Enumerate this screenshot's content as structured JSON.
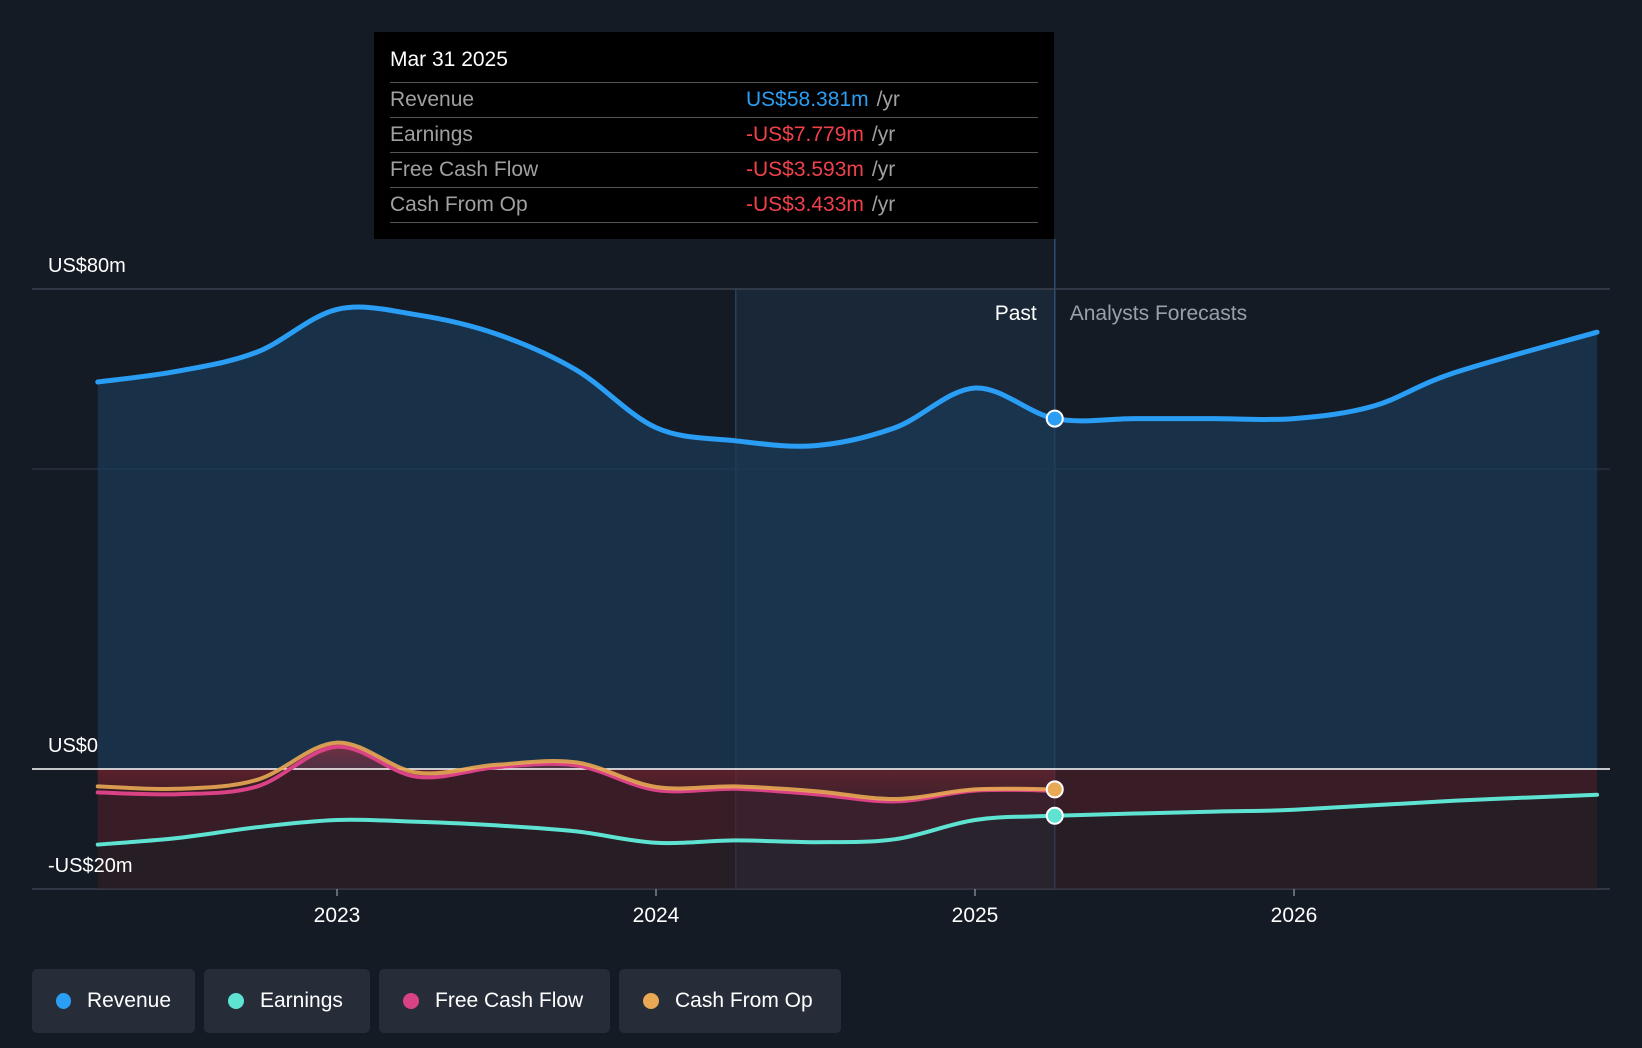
{
  "tooltip": {
    "date": "Mar 31 2025",
    "rows": [
      {
        "label": "Revenue",
        "value": "US$58.381m",
        "unit": "/yr",
        "color": "#2a9df4"
      },
      {
        "label": "Earnings",
        "value": "-US$7.779m",
        "unit": "/yr",
        "color": "#f0414b"
      },
      {
        "label": "Free Cash Flow",
        "value": "-US$3.593m",
        "unit": "/yr",
        "color": "#f0414b"
      },
      {
        "label": "Cash From Op",
        "value": "-US$3.433m",
        "unit": "/yr",
        "color": "#f0414b"
      }
    ]
  },
  "legend": [
    {
      "label": "Revenue",
      "color": "#2a9df4"
    },
    {
      "label": "Earnings",
      "color": "#5ee3d3"
    },
    {
      "label": "Free Cash Flow",
      "color": "#d94386"
    },
    {
      "label": "Cash From Op",
      "color": "#e8a854"
    }
  ],
  "chart_data": {
    "type": "area",
    "x_axis": {
      "range": [
        2022.2,
        2026.95
      ],
      "ticks": [
        2023,
        2024,
        2025,
        2026
      ],
      "tick_labels": [
        "2023",
        "2024",
        "2025",
        "2026"
      ]
    },
    "y_axis": {
      "range": [
        -20,
        80
      ],
      "tick_labels": [
        {
          "value": 80,
          "label": "US$80m"
        },
        {
          "value": 0,
          "label": "US$0"
        },
        {
          "value": -20,
          "label": "-US$20m"
        }
      ]
    },
    "past_label": "Past",
    "forecast_label": "Analysts Forecasts",
    "past_end": 2025.25,
    "highlight_start": 2024.25,
    "series": [
      {
        "name": "Revenue",
        "color": "#2a9df4",
        "points": [
          [
            2022.25,
            64.5
          ],
          [
            2022.5,
            66.3
          ],
          [
            2022.75,
            69.5
          ],
          [
            2023.0,
            76.6
          ],
          [
            2023.25,
            75.7
          ],
          [
            2023.5,
            72.5
          ],
          [
            2023.75,
            66.5
          ],
          [
            2024.0,
            56.9
          ],
          [
            2024.25,
            54.7
          ],
          [
            2024.5,
            53.9
          ],
          [
            2024.75,
            56.9
          ],
          [
            2025.0,
            63.5
          ],
          [
            2025.25,
            58.4
          ],
          [
            2025.5,
            58.4
          ],
          [
            2025.75,
            58.4
          ],
          [
            2026.0,
            58.4
          ],
          [
            2026.25,
            60.5
          ],
          [
            2026.5,
            66.0
          ],
          [
            2026.95,
            72.8
          ]
        ]
      },
      {
        "name": "Earnings",
        "color": "#5ee3d3",
        "points": [
          [
            2022.25,
            -12.6
          ],
          [
            2022.5,
            -11.5
          ],
          [
            2022.75,
            -9.7
          ],
          [
            2023.0,
            -8.5
          ],
          [
            2023.25,
            -8.8
          ],
          [
            2023.5,
            -9.4
          ],
          [
            2023.75,
            -10.4
          ],
          [
            2024.0,
            -12.3
          ],
          [
            2024.25,
            -11.9
          ],
          [
            2024.5,
            -12.2
          ],
          [
            2024.75,
            -11.7
          ],
          [
            2025.0,
            -8.5
          ],
          [
            2025.25,
            -7.8
          ],
          [
            2025.75,
            -7.1
          ],
          [
            2026.0,
            -6.8
          ],
          [
            2026.5,
            -5.3
          ],
          [
            2026.95,
            -4.3
          ]
        ]
      },
      {
        "name": "Free Cash Flow",
        "color": "#d94386",
        "points": [
          [
            2022.25,
            -3.9
          ],
          [
            2022.5,
            -4.2
          ],
          [
            2022.75,
            -2.9
          ],
          [
            2023.0,
            3.7
          ],
          [
            2023.25,
            -1.3
          ],
          [
            2023.5,
            0.3
          ],
          [
            2023.75,
            0.6
          ],
          [
            2024.0,
            -3.5
          ],
          [
            2024.25,
            -3.3
          ],
          [
            2024.5,
            -4.2
          ],
          [
            2024.75,
            -5.4
          ],
          [
            2025.0,
            -3.6
          ],
          [
            2025.25,
            -3.6
          ]
        ]
      },
      {
        "name": "Cash From Op",
        "color": "#e8a854",
        "points": [
          [
            2022.25,
            -2.9
          ],
          [
            2022.5,
            -3.3
          ],
          [
            2022.75,
            -1.8
          ],
          [
            2023.0,
            4.4
          ],
          [
            2023.25,
            -0.6
          ],
          [
            2023.5,
            0.7
          ],
          [
            2023.75,
            1.1
          ],
          [
            2024.0,
            -3.0
          ],
          [
            2024.25,
            -2.9
          ],
          [
            2024.5,
            -3.7
          ],
          [
            2024.75,
            -5.0
          ],
          [
            2025.0,
            -3.4
          ],
          [
            2025.25,
            -3.4
          ]
        ]
      }
    ]
  }
}
